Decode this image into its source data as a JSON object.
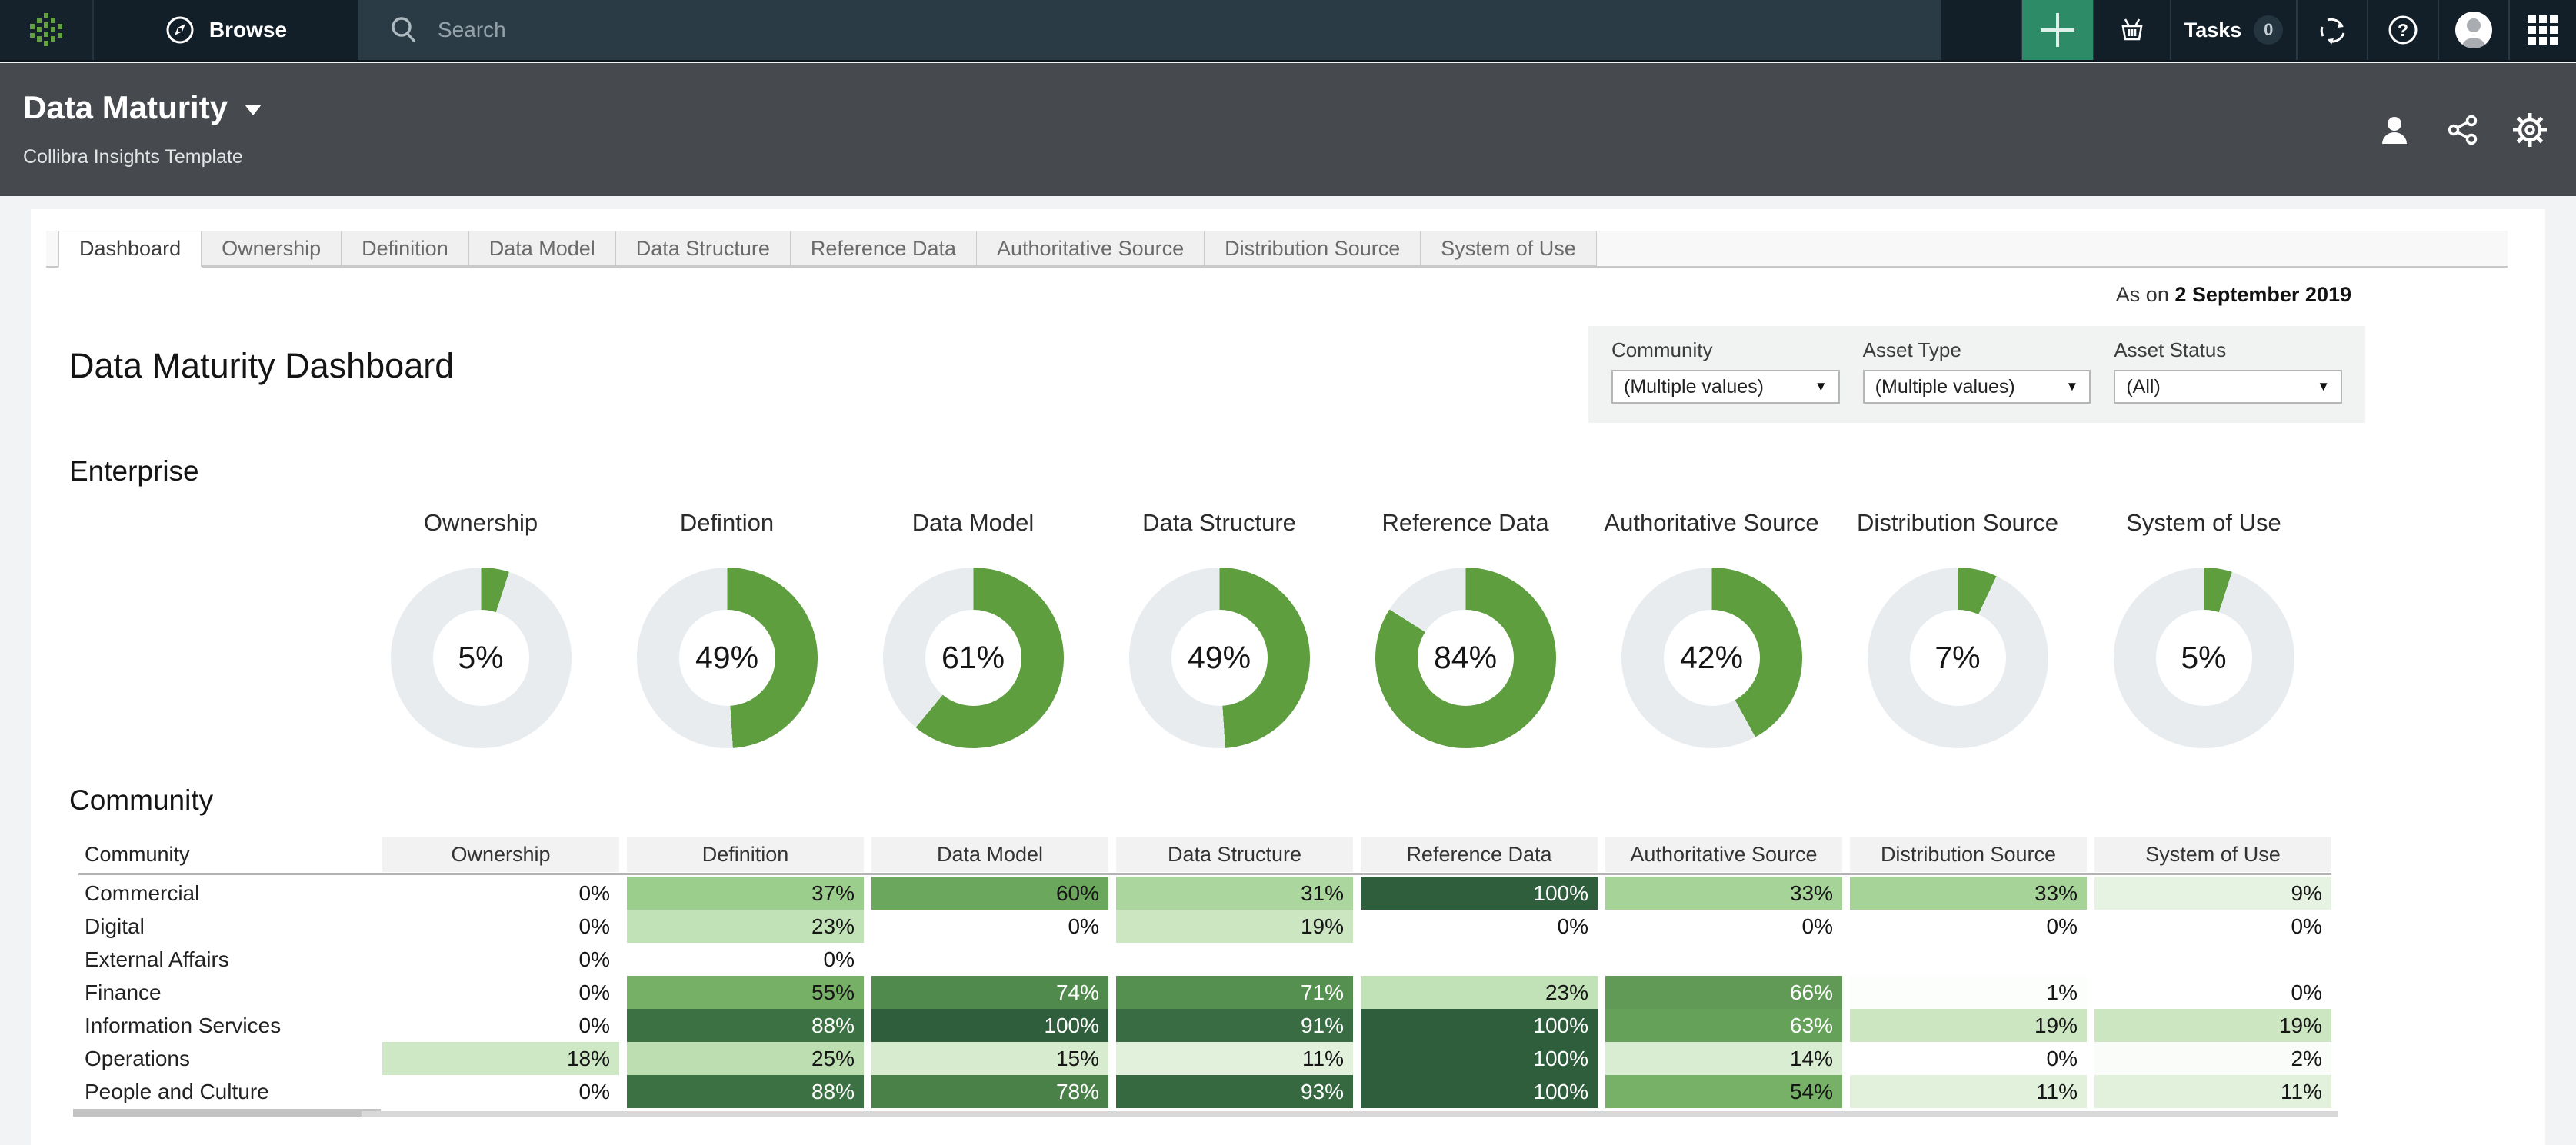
{
  "topnav": {
    "browse_label": "Browse",
    "search_placeholder": "Search",
    "tasks_label": "Tasks",
    "tasks_count": "0"
  },
  "header": {
    "title": "Data Maturity",
    "subtitle": "Collibra Insights Template"
  },
  "tabs": [
    {
      "label": "Dashboard",
      "active": true
    },
    {
      "label": "Ownership",
      "active": false
    },
    {
      "label": "Definition",
      "active": false
    },
    {
      "label": "Data Model",
      "active": false
    },
    {
      "label": "Data Structure",
      "active": false
    },
    {
      "label": "Reference Data",
      "active": false
    },
    {
      "label": "Authoritative Source",
      "active": false
    },
    {
      "label": "Distribution Source",
      "active": false
    },
    {
      "label": "System of Use",
      "active": false
    }
  ],
  "report": {
    "as_on_prefix": "As on",
    "as_on_date": "2 September 2019",
    "title": "Data Maturity Dashboard",
    "enterprise_heading": "Enterprise",
    "community_heading": "Community"
  },
  "filters": [
    {
      "label": "Community",
      "value": "(Multiple values)"
    },
    {
      "label": "Asset Type",
      "value": "(Multiple values)"
    },
    {
      "label": "Asset Status",
      "value": "(All)"
    }
  ],
  "chart_data": [
    {
      "type": "pie",
      "subtype": "donut-gauges",
      "title": "Enterprise",
      "unit": "%",
      "series": [
        {
          "name": "Ownership",
          "value": 5
        },
        {
          "name": "Defintion",
          "value": 49
        },
        {
          "name": "Data Model",
          "value": 61
        },
        {
          "name": "Data Structure",
          "value": 49
        },
        {
          "name": "Reference Data",
          "value": 84
        },
        {
          "name": "Authoritative Source",
          "value": 42
        },
        {
          "name": "Distribution Source",
          "value": 7
        },
        {
          "name": "System of Use",
          "value": 5
        }
      ]
    },
    {
      "type": "heatmap",
      "title": "Community",
      "unit": "%",
      "columns": [
        "Community",
        "Ownership",
        "Definition",
        "Data Model",
        "Data Structure",
        "Reference Data",
        "Authoritative Source",
        "Distribution Source",
        "System of Use"
      ],
      "rows": [
        {
          "name": "Commercial",
          "values": [
            0,
            37,
            60,
            31,
            100,
            33,
            33,
            9
          ]
        },
        {
          "name": "Digital",
          "values": [
            0,
            23,
            0,
            19,
            0,
            0,
            0,
            0
          ]
        },
        {
          "name": "External Affairs",
          "values": [
            0,
            0,
            null,
            null,
            null,
            null,
            null,
            null
          ]
        },
        {
          "name": "Finance",
          "values": [
            0,
            55,
            74,
            71,
            23,
            66,
            1,
            0
          ]
        },
        {
          "name": "Information Services",
          "values": [
            0,
            88,
            100,
            91,
            100,
            63,
            19,
            19
          ]
        },
        {
          "name": "Operations",
          "values": [
            18,
            25,
            15,
            11,
            100,
            14,
            0,
            2
          ]
        },
        {
          "name": "People and Culture",
          "values": [
            0,
            88,
            78,
            93,
            100,
            54,
            11,
            11
          ]
        }
      ]
    }
  ],
  "colors": {
    "donut_green": "#5f9e3f",
    "donut_track": "#e8ecef",
    "plus_tile_green": "#2e8b68",
    "heat_stops": [
      [
        0,
        "#ffffff"
      ],
      [
        20,
        "#c9e5bf"
      ],
      [
        40,
        "#93c983"
      ],
      [
        60,
        "#6ba75c"
      ],
      [
        80,
        "#457d47"
      ],
      [
        100,
        "#2f5e3d"
      ]
    ],
    "heat_white_text_above": 60
  },
  "icons": {
    "logo": "collibra-logo",
    "browse": "compass-icon",
    "search": "search-icon",
    "create": "plus-icon",
    "basket": "basket-icon",
    "sync": "sync-icon",
    "help": "help-icon",
    "avatar": "user-avatar-icon",
    "apps": "apps-grid-icon",
    "profile": "person-icon",
    "share": "share-icon",
    "settings": "gear-icon"
  }
}
